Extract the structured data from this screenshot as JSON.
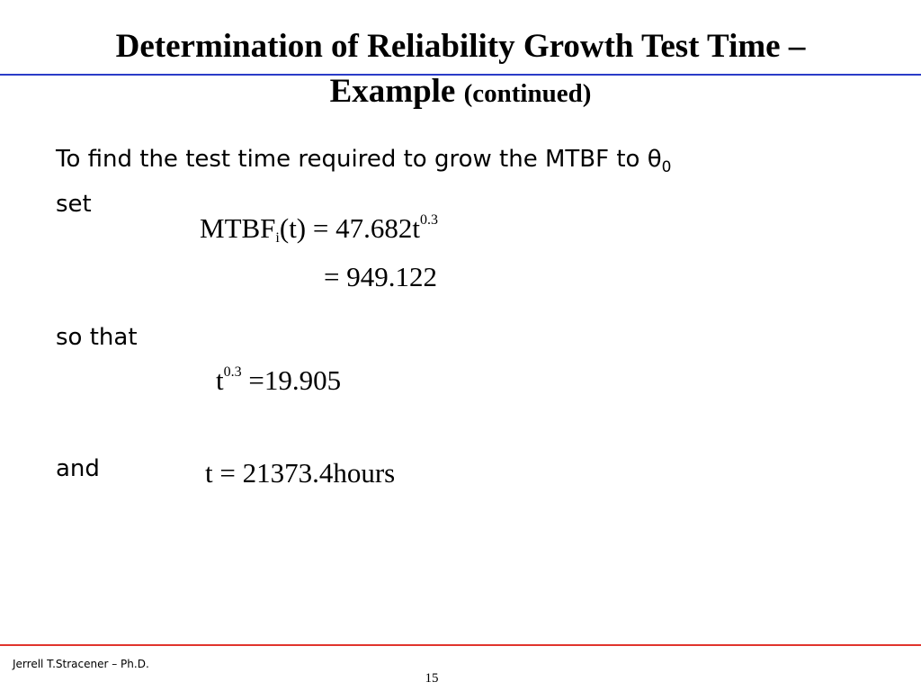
{
  "slide": {
    "title_line1": "Determination of Reliability Growth Test Time –",
    "title_line2_main": "Example",
    "title_line2_small": "(continued)",
    "intro_text": "To find the test time required to grow the MTBF to θ",
    "intro_subscript": "0",
    "set_label": "set",
    "so_that_label": "so that",
    "and_label": "and",
    "eq1_lhs": "MTBF",
    "eq1_lhs_sub": "i",
    "eq1_arg": "(t) = 47.682t",
    "eq1_exp": "0.3",
    "eq2": "= 949.122",
    "eq3_base": "t",
    "eq3_exp": "0.3",
    "eq3_rhs": " =19.905",
    "eq4": "t = 21373.4hours",
    "footer_author": "Jerrell T.Stracener – Ph.D.",
    "page_number": "15"
  },
  "colors": {
    "top_rule": "#2a3cc8",
    "bottom_rule": "#e0342c"
  }
}
